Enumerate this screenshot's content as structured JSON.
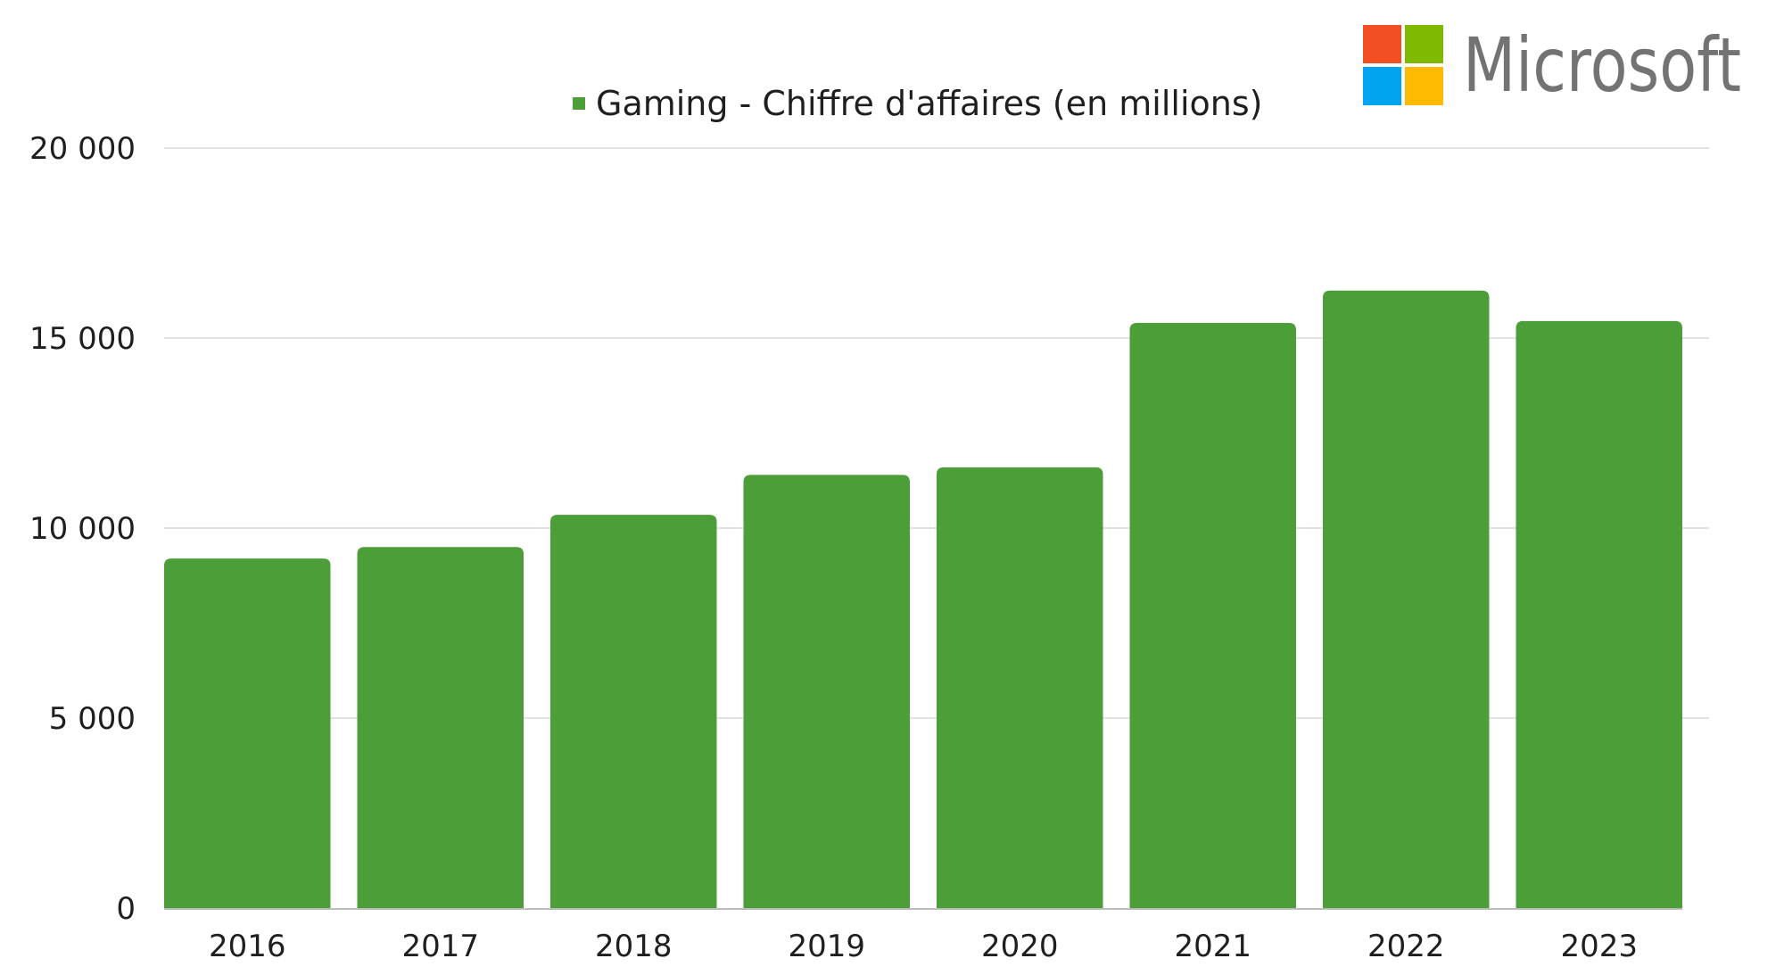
{
  "chart_data": {
    "type": "bar",
    "legend": {
      "label": "Gaming - Chiffre d'affaires (en millions)",
      "placement": "top-center"
    },
    "categories": [
      "2016",
      "2017",
      "2018",
      "2019",
      "2020",
      "2021",
      "2022",
      "2023"
    ],
    "series": [
      {
        "name": "Gaming - Chiffre d'affaires (en millions)",
        "color": "#4c9e38",
        "values": [
          9200,
          9500,
          10350,
          11400,
          11600,
          15400,
          16250,
          15450
        ]
      }
    ],
    "y_ticks": [
      {
        "value": 0,
        "label": "0"
      },
      {
        "value": 5000,
        "label": "5 000"
      },
      {
        "value": 10000,
        "label": "10 000"
      },
      {
        "value": 15000,
        "label": "15 000"
      },
      {
        "value": 20000,
        "label": "20 000"
      }
    ],
    "ylim": [
      0,
      20000
    ],
    "grid": true
  },
  "logo": {
    "text": "Microsoft",
    "text_color": "#737373",
    "square_colors": [
      "#f25022",
      "#7fba00",
      "#00a4ef",
      "#ffb900"
    ]
  }
}
